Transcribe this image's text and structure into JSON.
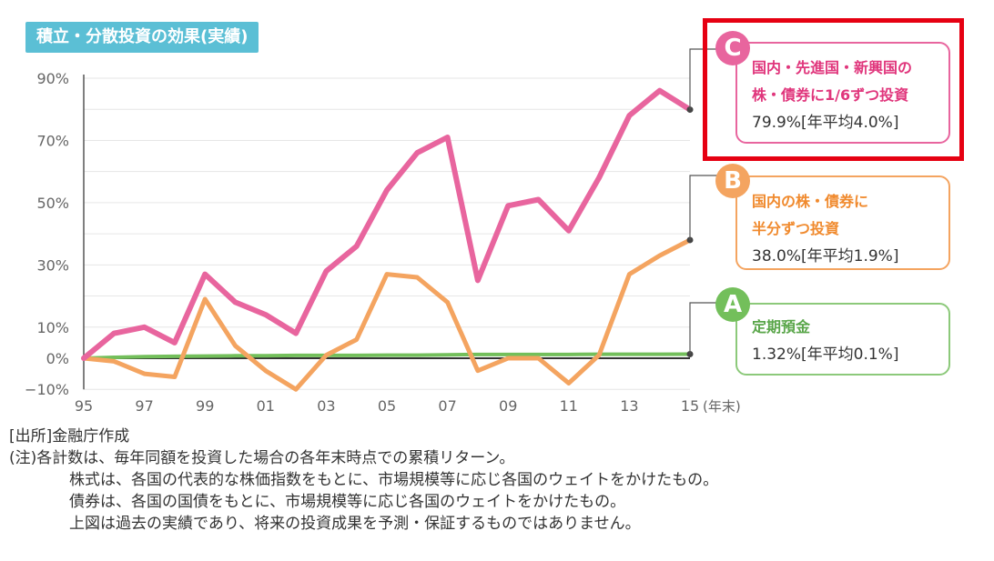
{
  "header": {
    "title": "積立・分散投資の効果(実績)"
  },
  "chart_data": {
    "type": "line",
    "x": [
      "95",
      "96",
      "97",
      "98",
      "99",
      "00",
      "01",
      "02",
      "03",
      "04",
      "05",
      "06",
      "07",
      "08",
      "09",
      "10",
      "11",
      "12",
      "13",
      "14",
      "15"
    ],
    "x_tick_labels": [
      "95",
      "97",
      "99",
      "01",
      "03",
      "05",
      "07",
      "09",
      "11",
      "13",
      "15"
    ],
    "x_unit": "(年末)",
    "y_tick_labels": [
      "90%",
      "70%",
      "50%",
      "30%",
      "10%",
      "0%",
      "−10%"
    ],
    "y_ticks": [
      90,
      70,
      50,
      30,
      10,
      0,
      -10
    ],
    "ylim": [
      -10,
      95
    ],
    "series": [
      {
        "name": "C",
        "color": "#e8659e",
        "values": [
          0,
          8,
          10,
          5,
          27,
          18,
          14,
          8,
          28,
          36,
          54,
          66,
          71,
          25,
          49,
          51,
          41,
          58,
          78,
          86,
          79.9
        ]
      },
      {
        "name": "B",
        "color": "#f4a460",
        "values": [
          0,
          -1,
          -5,
          -6,
          19,
          4,
          -4,
          -10,
          1,
          6,
          27,
          26,
          18,
          -4,
          0,
          0,
          -8,
          1,
          27,
          33,
          38.0
        ]
      },
      {
        "name": "A",
        "color": "#73bf5b",
        "values": [
          0,
          0.3,
          0.5,
          0.6,
          0.7,
          0.8,
          0.8,
          0.9,
          0.9,
          0.9,
          1.0,
          1.0,
          1.1,
          1.2,
          1.2,
          1.2,
          1.2,
          1.3,
          1.3,
          1.3,
          1.32
        ]
      }
    ],
    "grid": true
  },
  "callouts": {
    "c": {
      "badge": "C",
      "line1": "国内・先進国・新興国の",
      "line2": "株・債券に1/6ずつ投資",
      "line3": "79.9%[年平均4.0%]"
    },
    "b": {
      "badge": "B",
      "line1": "国内の株・債券に",
      "line2": "半分ずつ投資",
      "line3": "38.0%[年平均1.9%]"
    },
    "a": {
      "badge": "A",
      "line1": "定期預金",
      "line3": "1.32%[年平均0.1%]"
    }
  },
  "notes": {
    "source": "[出所]金融庁作成",
    "note_intro": "(注)各計数は、毎年同額を投資した場合の各年末時点での累積リターン。",
    "note_2": "株式は、各国の代表的な株価指数をもとに、市場規模等に応じ各国のウェイトをかけたもの。",
    "note_3": "債券は、各国の国債をもとに、市場規模等に応じ各国のウェイトをかけたもの。",
    "note_4": "上図は過去の実績であり、将来の投資成果を予測・保証するものではありません。"
  }
}
